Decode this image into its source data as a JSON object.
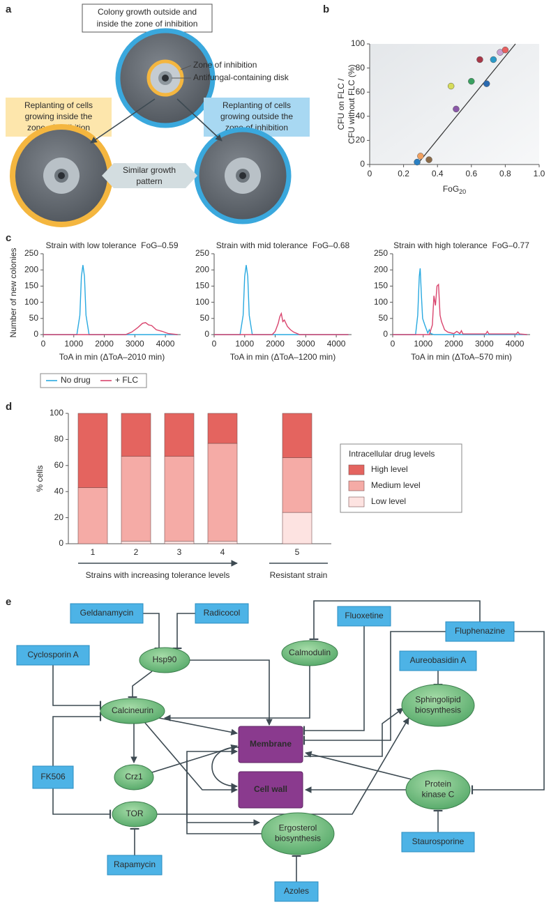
{
  "panel_labels": [
    "a",
    "b",
    "c",
    "d",
    "e"
  ],
  "diagram_a": {
    "top_box": [
      "Colony growth outside and",
      "inside the zone of inhibition"
    ],
    "zone_label": "Zone of inhibition",
    "disk_label": "Antifungal-containing disk",
    "inside_box": [
      "Replanting of cells",
      "growing inside the",
      "zone of inhibition"
    ],
    "outside_box": [
      "Replanting of cells",
      "growing outside the",
      "zone of inhibition"
    ],
    "similar_box": [
      "Similar growth",
      "pattern"
    ]
  },
  "chart_data": [
    {
      "type": "scatter",
      "x_label": "FoG",
      "x_label_subscript": "20",
      "y_label": [
        "CFU on FLC /",
        "CFU without FLC (%)"
      ],
      "x": [
        0.28,
        0.3,
        0.35,
        0.48,
        0.51,
        0.6,
        0.65,
        0.69,
        0.73,
        0.77,
        0.8
      ],
      "values": [
        2,
        7,
        4,
        65,
        46,
        69,
        87,
        67,
        87,
        93,
        95
      ],
      "colors": [
        "#2a7fc2",
        "#f0a060",
        "#8a6a48",
        "#d6dc5a",
        "#8a58a8",
        "#3aa060",
        "#a83848",
        "#2a6ab0",
        "#2a9ac8",
        "#c8a0d0",
        "#e86060"
      ],
      "fit_line": {
        "x": [
          0.28,
          0.86
        ],
        "values": [
          0,
          100
        ]
      },
      "xlim": [
        0,
        1
      ],
      "xticks": [
        0,
        0.2,
        0.4,
        0.6,
        0.8,
        {
          "value": 1,
          "label": "1.0"
        }
      ],
      "ylim": [
        0,
        100
      ],
      "yticks": [
        0,
        20,
        40,
        60,
        80,
        100
      ]
    },
    {
      "type": "line",
      "title": "Strain with low tolerance  FoG–0.59",
      "x_label": "ToA in min (ΔToA–2010 min)",
      "y_label": "Number of new colonies",
      "series": [
        {
          "name": "No drug",
          "color": "#29a9e0",
          "x": [
            0,
            1100,
            1200,
            1250,
            1300,
            1350,
            1400,
            1500,
            4400
          ],
          "values": [
            0,
            0,
            60,
            180,
            215,
            180,
            60,
            0,
            0
          ]
        },
        {
          "name": "+ FLC",
          "color": "#d9456e",
          "x": [
            0,
            2700,
            2900,
            3100,
            3250,
            3350,
            3450,
            3550,
            3700,
            3900,
            4100,
            4400
          ],
          "values": [
            0,
            0,
            8,
            22,
            35,
            37,
            30,
            28,
            15,
            10,
            3,
            0
          ]
        }
      ],
      "xlim": [
        0,
        4500
      ],
      "xticks": [
        0,
        1000,
        2000,
        3000,
        4000
      ],
      "ylim": [
        0,
        250
      ],
      "yticks": [
        0,
        50,
        100,
        150,
        200,
        250
      ]
    },
    {
      "type": "line",
      "title": "Strain with mid tolerance  FoG–0.68",
      "x_label": "ToA in min (ΔToA–1200 min)",
      "series": [
        {
          "color": "#29a9e0",
          "x": [
            0,
            850,
            950,
            1000,
            1050,
            1100,
            1150,
            1250,
            4400
          ],
          "values": [
            0,
            0,
            60,
            180,
            215,
            180,
            60,
            0,
            0
          ]
        },
        {
          "color": "#d9456e",
          "x": [
            0,
            1900,
            2000,
            2100,
            2150,
            2200,
            2250,
            2300,
            2400,
            2500,
            2600,
            2800,
            4400
          ],
          "values": [
            0,
            0,
            10,
            35,
            55,
            65,
            40,
            45,
            25,
            15,
            8,
            0,
            0
          ]
        }
      ],
      "xlim": [
        0,
        4500
      ],
      "xticks": [
        0,
        1000,
        2000,
        3000,
        4000
      ],
      "ylim": [
        0,
        250
      ],
      "yticks": [
        0,
        50,
        100,
        150,
        200,
        250
      ]
    },
    {
      "type": "line",
      "title": "Strain with high tolerance  FoG–0.77",
      "x_label": "ToA in min (ΔToA–570 min)",
      "series": [
        {
          "color": "#29a9e0",
          "x": [
            0,
            750,
            820,
            870,
            900,
            940,
            980,
            1050,
            1150,
            1200,
            1250,
            1350,
            4400
          ],
          "values": [
            0,
            0,
            60,
            180,
            205,
            120,
            50,
            30,
            5,
            15,
            3,
            0,
            0
          ]
        },
        {
          "color": "#d9456e",
          "x": [
            0,
            1200,
            1300,
            1350,
            1400,
            1450,
            1500,
            1550,
            1600,
            1700,
            1800,
            2000,
            2100,
            2200,
            2250,
            2300,
            2600,
            3050,
            3100,
            3150,
            4050,
            4100,
            4150,
            4400
          ],
          "values": [
            0,
            0,
            30,
            120,
            90,
            150,
            155,
            60,
            40,
            15,
            8,
            3,
            10,
            3,
            12,
            2,
            2,
            2,
            10,
            2,
            2,
            8,
            2,
            0
          ]
        }
      ],
      "xlim": [
        0,
        4500
      ],
      "xticks": [
        0,
        1000,
        2000,
        3000,
        4000
      ],
      "ylim": [
        0,
        250
      ],
      "yticks": [
        0,
        50,
        100,
        150,
        200,
        250
      ]
    },
    {
      "type": "bar",
      "stacked": true,
      "y_label": "% cells",
      "categories": [
        "1",
        "2",
        "3",
        "4",
        "5"
      ],
      "group_labels": [
        "Strains with increasing tolerance levels",
        "Resistant strain"
      ],
      "legend_title": "Intracellular drug levels",
      "series": [
        {
          "name": "Low level",
          "color": "#fde3e1",
          "values": [
            0,
            2,
            2,
            2,
            24
          ]
        },
        {
          "name": "Medium level",
          "color": "#f5aba6",
          "values": [
            43,
            65,
            65,
            75,
            42
          ]
        },
        {
          "name": "High level",
          "color": "#e4645f",
          "values": [
            57,
            33,
            33,
            23,
            34
          ]
        }
      ],
      "ylim": [
        0,
        100
      ],
      "yticks": [
        0,
        20,
        40,
        60,
        80,
        100
      ]
    }
  ],
  "diagram_e": {
    "inhibitors": [
      "Geldanamycin",
      "Radicocol",
      "Cyclosporin A",
      "FK506",
      "Rapamycin",
      "Fluoxetine",
      "Fluphenazine",
      "Aureobasidin A",
      "Staurosporine",
      "Azoles"
    ],
    "pathways": [
      [
        "Hsp90"
      ],
      [
        "Calmodulin"
      ],
      [
        "Calcineurin"
      ],
      [
        "Crz1"
      ],
      [
        "TOR"
      ],
      [
        "Sphingolipid",
        "biosynthesis"
      ],
      [
        "Ergosterol",
        "biosynthesis"
      ],
      [
        "Protein",
        "kinase C"
      ]
    ],
    "components": [
      "Membrane",
      "Cell wall"
    ]
  }
}
